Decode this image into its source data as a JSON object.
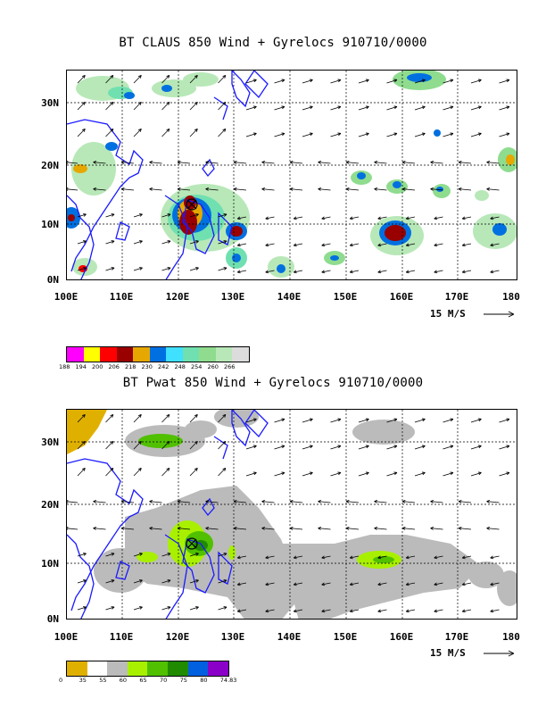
{
  "panels": [
    {
      "title": "BT CLAUS 850 Wind + Gyrelocs 910710/0000",
      "legend_values": [
        "188",
        "194",
        "200",
        "206",
        "218",
        "230",
        "242",
        "248",
        "254",
        "260",
        "266"
      ],
      "legend_colors": [
        "#ff00ff",
        "#ffff00",
        "#ff0000",
        "#990000",
        "#e6a800",
        "#0070e0",
        "#40e0ff",
        "#70e0b0",
        "#8fdc8f",
        "#b8e8b8",
        "#dcdcdc"
      ]
    },
    {
      "title": "BT Pwat 850 Wind + Gyrelocs 910710/0000",
      "legend_values": [
        "0",
        "35",
        "55",
        "60",
        "65",
        "70",
        "75",
        "80",
        "74.83"
      ],
      "legend_colors": [
        "#e0b000",
        "#ffffff",
        "#bbbbbb",
        "#a8f000",
        "#50c000",
        "#208a00",
        "#0060e0",
        "#8a00c8"
      ]
    }
  ],
  "axes": {
    "lat_labels": [
      "30N",
      "20N",
      "10N",
      "0N"
    ],
    "lon_labels": [
      "100E",
      "110E",
      "120E",
      "130E",
      "140E",
      "150E",
      "160E",
      "170E",
      "180"
    ],
    "reference_vector": "15 M/S"
  }
}
